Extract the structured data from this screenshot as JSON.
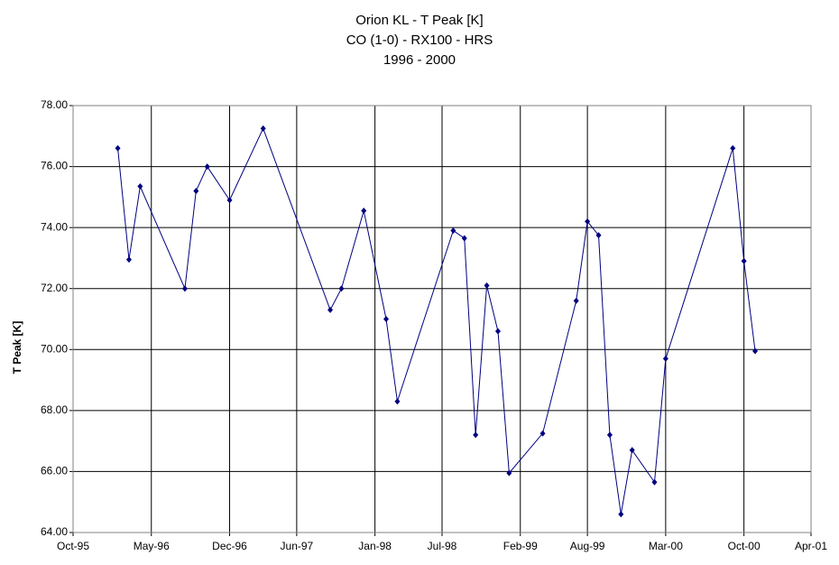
{
  "chart_data": {
    "type": "line",
    "title": [
      "Orion KL - T Peak [K]",
      "CO (1-0) - RX100 - HRS",
      "1996 - 2000"
    ],
    "y_label": "T Peak [K]",
    "x": [
      "1996-02",
      "1996-03",
      "1996-04",
      "1996-08",
      "1996-09",
      "1996-10",
      "1996-12",
      "1997-03",
      "1997-09",
      "1997-10",
      "1997-12",
      "1998-02",
      "1998-03",
      "1998-08",
      "1998-09",
      "1998-10",
      "1998-11",
      "1998-12",
      "1999-01",
      "1999-04",
      "1999-07",
      "1999-08",
      "1999-09",
      "1999-10",
      "1999-11",
      "1999-12",
      "2000-02",
      "2000-03",
      "2000-09",
      "2000-10",
      "2000-11"
    ],
    "series": [
      {
        "color": "#000080",
        "values": [
          76.6,
          72.95,
          75.35,
          72.0,
          75.2,
          76.0,
          74.9,
          77.25,
          71.3,
          72.0,
          74.55,
          71.0,
          68.3,
          73.9,
          73.65,
          67.2,
          72.1,
          70.6,
          65.95,
          67.25,
          71.6,
          74.2,
          73.75,
          67.2,
          64.6,
          66.7,
          65.65,
          69.7,
          76.6,
          72.9,
          69.95
        ]
      }
    ],
    "xlim": [
      "1995-10",
      "2001-04"
    ],
    "xticks": [
      {
        "value": "1995-10",
        "label": "Oct-95"
      },
      {
        "value": "1996-05",
        "label": "May-96"
      },
      {
        "value": "1996-12",
        "label": "Dec-96"
      },
      {
        "value": "1997-06",
        "label": "Jun-97"
      },
      {
        "value": "1998-01",
        "label": "Jan-98"
      },
      {
        "value": "1998-07",
        "label": "Jul-98"
      },
      {
        "value": "1999-02",
        "label": "Feb-99"
      },
      {
        "value": "1999-08",
        "label": "Aug-99"
      },
      {
        "value": "2000-03",
        "label": "Mar-00"
      },
      {
        "value": "2000-10",
        "label": "Oct-00"
      },
      {
        "value": "2001-04",
        "label": "Apr-01"
      }
    ],
    "ylim": [
      64,
      78
    ],
    "yticks": [
      {
        "value": 64,
        "label": "64.00"
      },
      {
        "value": 66,
        "label": "66.00"
      },
      {
        "value": 68,
        "label": "68.00"
      },
      {
        "value": 70,
        "label": "70.00"
      },
      {
        "value": 72,
        "label": "72.00"
      },
      {
        "value": 74,
        "label": "74.00"
      },
      {
        "value": 76,
        "label": "76.00"
      },
      {
        "value": 78,
        "label": "78.00"
      }
    ],
    "grid": true
  }
}
